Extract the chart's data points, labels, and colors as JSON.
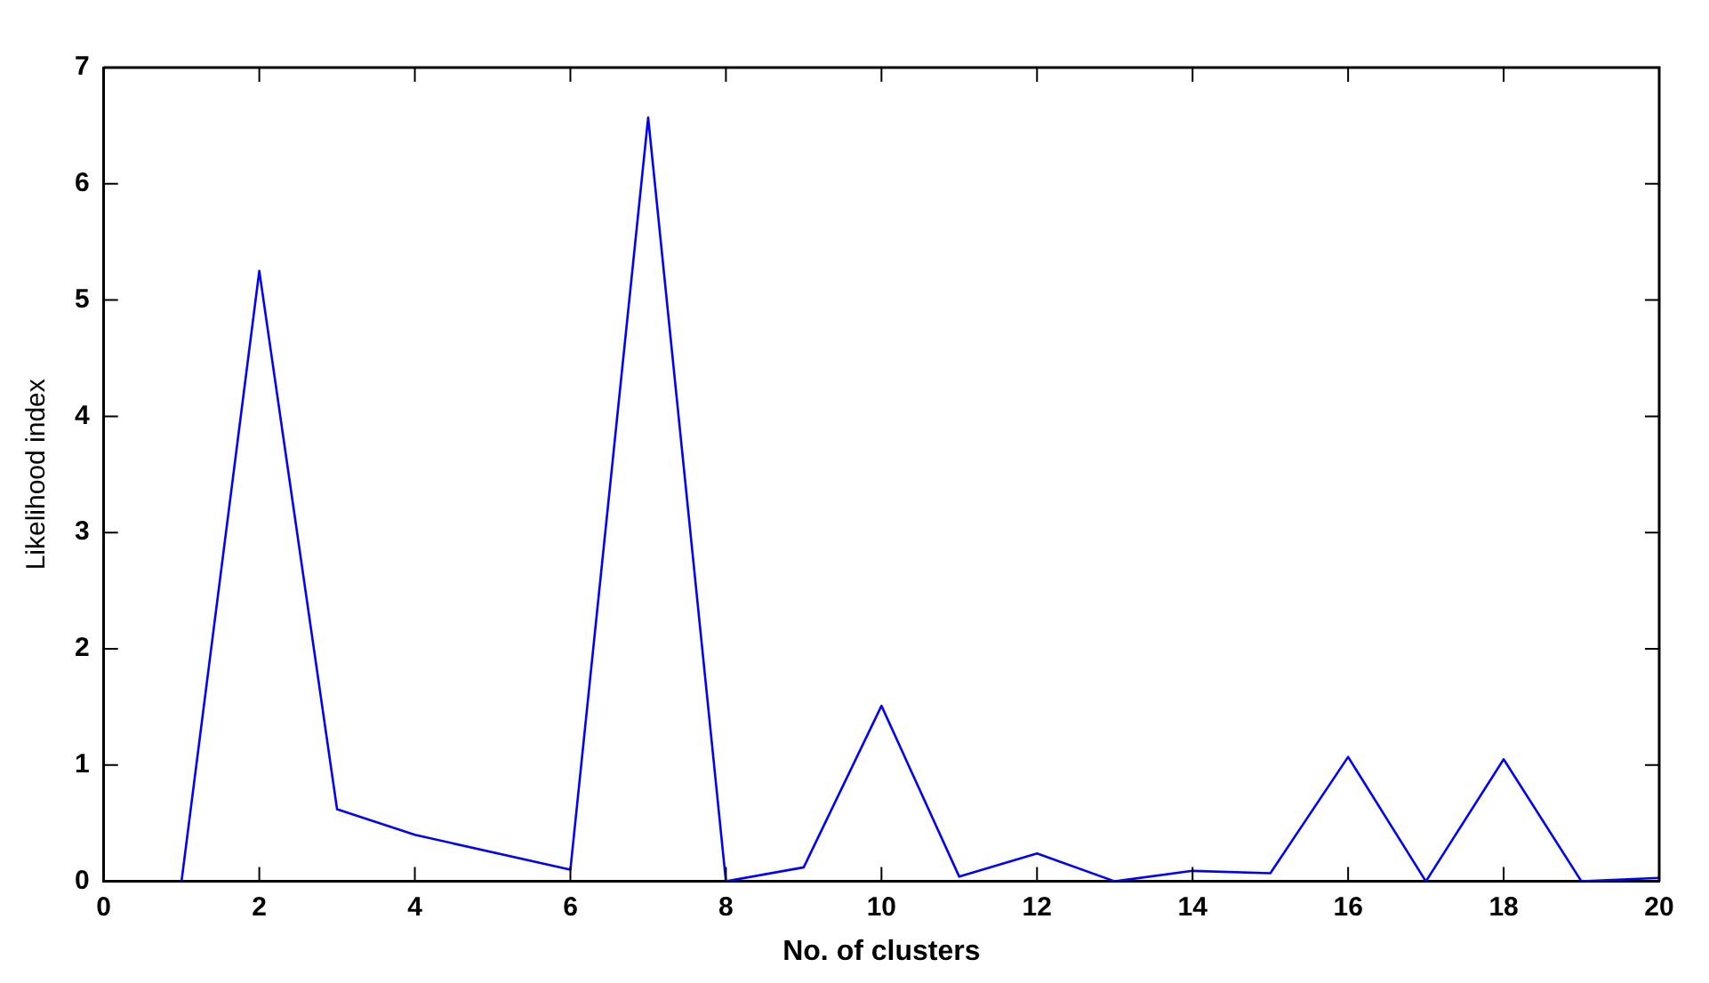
{
  "chart_data": {
    "type": "line",
    "xlabel": "No. of clusters",
    "ylabel": "Likelihood index",
    "x": [
      1,
      2,
      3,
      4,
      6,
      7,
      8,
      9,
      10,
      11,
      12,
      13,
      14,
      15,
      16,
      17,
      18,
      19,
      20
    ],
    "series": [
      {
        "color": "#0000ff",
        "values": [
          0,
          5.25,
          0.62,
          0.4,
          0.1,
          6.57,
          0,
          0.12,
          1.51,
          0.04,
          0.24,
          0,
          0.09,
          0.07,
          1.07,
          0,
          1.05,
          0,
          0.03
        ]
      }
    ],
    "xlim": [
      0,
      20
    ],
    "xticks": [
      0,
      2,
      4,
      6,
      8,
      10,
      12,
      14,
      16,
      18,
      20
    ],
    "ylim": [
      0,
      7
    ],
    "yticks": [
      0,
      1,
      2,
      3,
      4,
      5,
      6,
      7
    ],
    "grid": false,
    "legend": false,
    "marker": "none",
    "line_style": "solid"
  }
}
